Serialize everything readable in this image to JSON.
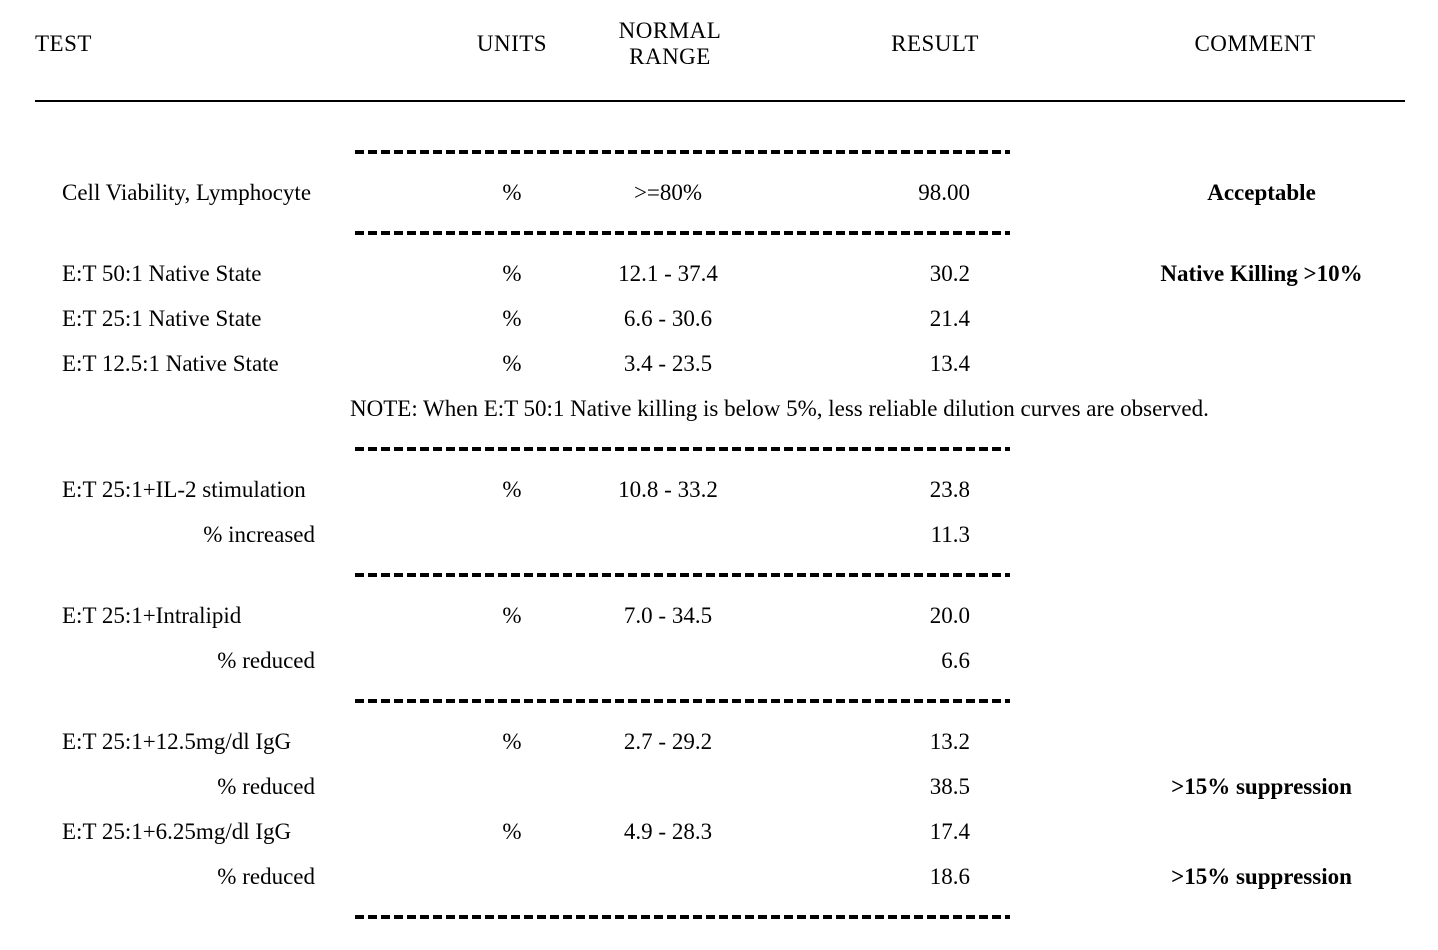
{
  "colors": {
    "ink": "#000000",
    "background": "#ffffff"
  },
  "headers": {
    "test": "TEST",
    "units": "UNITS",
    "normal_range_line1": "NORMAL",
    "normal_range_line2": "RANGE",
    "result": "RESULT",
    "comment": "COMMENT"
  },
  "note": "NOTE: When E:T 50:1 Native killing is below 5%, less reliable dilution curves are observed.",
  "rows": [
    {
      "kind": "separator"
    },
    {
      "kind": "data",
      "test": "Cell Viability, Lymphocyte",
      "units": "%",
      "range": ">=80%",
      "result": "98.00",
      "comment": "Acceptable",
      "comment_bold": true
    },
    {
      "kind": "separator"
    },
    {
      "kind": "data",
      "test": "E:T 50:1 Native State",
      "units": "%",
      "range": "12.1 - 37.4",
      "result": "30.2",
      "comment": "Native Killing >10%",
      "comment_bold": true
    },
    {
      "kind": "data",
      "test": "E:T 25:1 Native State",
      "units": "%",
      "range": "6.6 - 30.6",
      "result": "21.4",
      "comment": ""
    },
    {
      "kind": "data",
      "test": "E:T 12.5:1 Native State",
      "units": "%",
      "range": "3.4 - 23.5",
      "result": "13.4",
      "comment": ""
    },
    {
      "kind": "note"
    },
    {
      "kind": "separator"
    },
    {
      "kind": "data",
      "test": "E:T 25:1+IL-2 stimulation",
      "units": "%",
      "range": "10.8 - 33.2",
      "result": "23.8",
      "comment": ""
    },
    {
      "kind": "data",
      "test": "% increased",
      "indent": true,
      "units": "",
      "range": "",
      "result": "11.3",
      "comment": ""
    },
    {
      "kind": "separator"
    },
    {
      "kind": "data",
      "test": "E:T 25:1+Intralipid",
      "units": "%",
      "range": "7.0 - 34.5",
      "result": "20.0",
      "comment": ""
    },
    {
      "kind": "data",
      "test": "% reduced",
      "indent": true,
      "units": "",
      "range": "",
      "result": "6.6",
      "comment": ""
    },
    {
      "kind": "separator"
    },
    {
      "kind": "data",
      "test": "E:T 25:1+12.5mg/dl IgG",
      "units": "%",
      "range": "2.7 - 29.2",
      "result": "13.2",
      "comment": ""
    },
    {
      "kind": "data",
      "test": "% reduced",
      "indent": true,
      "units": "",
      "range": "",
      "result": "38.5",
      "comment": ">15% suppression",
      "comment_bold": true
    },
    {
      "kind": "data",
      "test": "E:T 25:1+6.25mg/dl IgG",
      "units": "%",
      "range": "4.9 - 28.3",
      "result": "17.4",
      "comment": ""
    },
    {
      "kind": "data",
      "test": "% reduced",
      "indent": true,
      "units": "",
      "range": "",
      "result": "18.6",
      "comment": ">15% suppression",
      "comment_bold": true
    },
    {
      "kind": "separator"
    }
  ]
}
